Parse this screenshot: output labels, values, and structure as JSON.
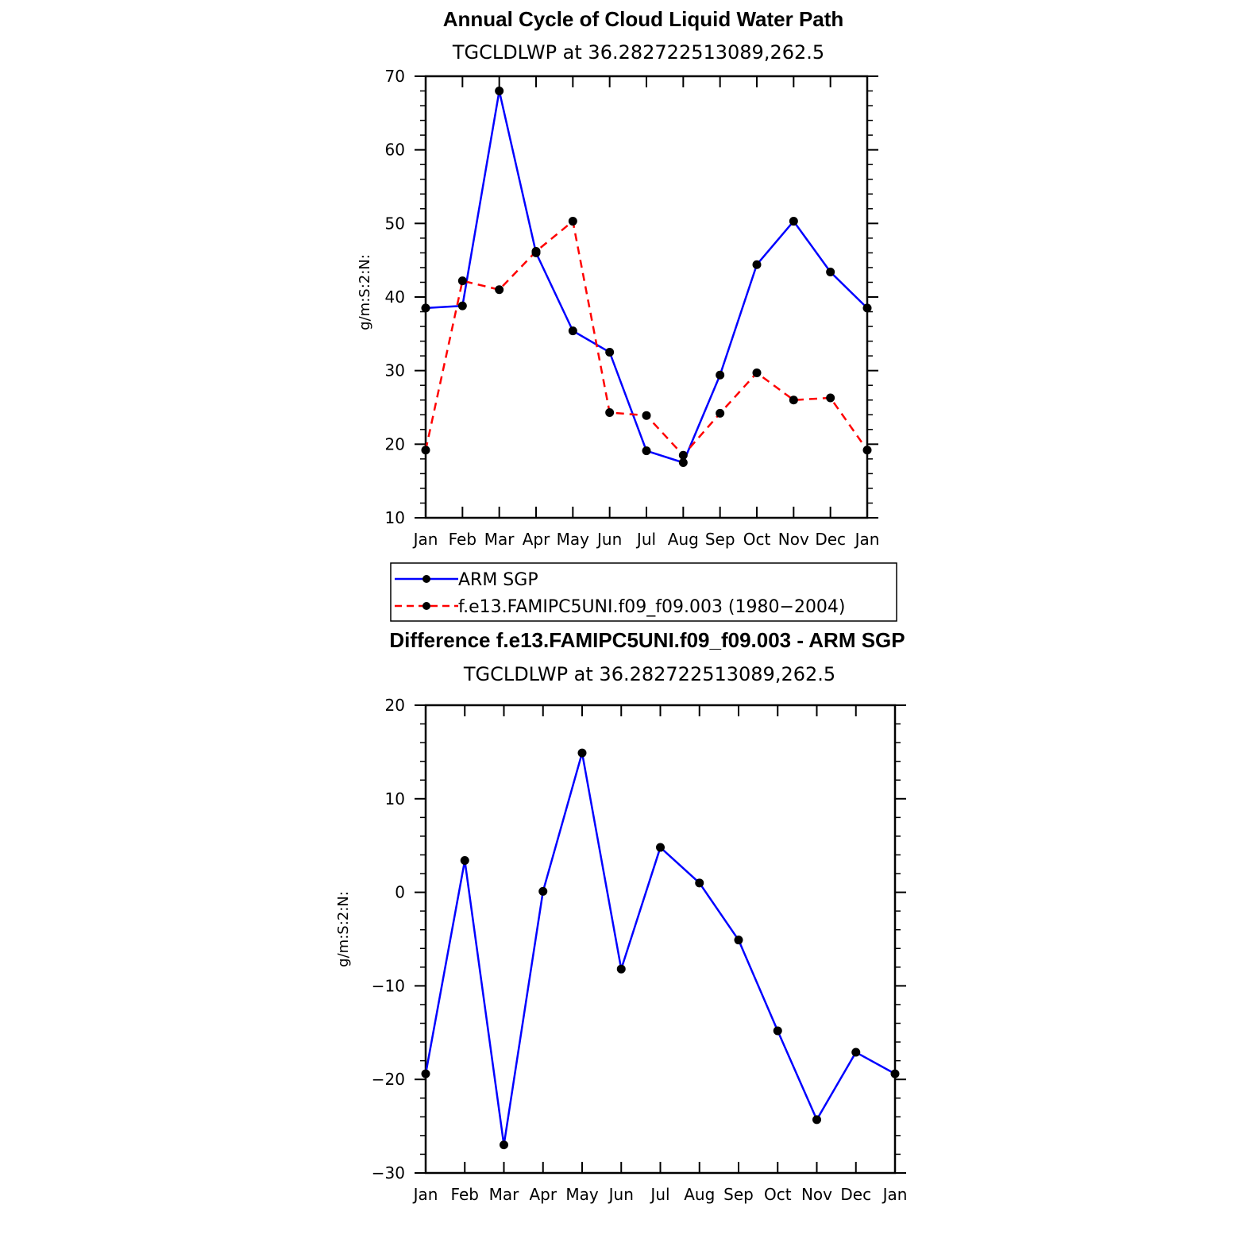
{
  "colors": {
    "arm": "#0000ff",
    "model": "#ff0000",
    "marker": "#000000"
  },
  "chart_data": [
    {
      "type": "line",
      "title": "Annual Cycle of Cloud Liquid Water Path",
      "subtitle": "TGCLDLWP  at  36.282722513089,262.5",
      "ylabel": "g/m:S:2:N:",
      "categories": [
        "Jan",
        "Feb",
        "Mar",
        "Apr",
        "May",
        "Jun",
        "Jul",
        "Aug",
        "Sep",
        "Oct",
        "Nov",
        "Dec",
        "Jan"
      ],
      "ylim": [
        10,
        70
      ],
      "yticks": [
        10,
        20,
        30,
        40,
        50,
        60,
        70
      ],
      "series": [
        {
          "name": "ARM  SGP",
          "style": "solid",
          "color": "#0000ff",
          "values": [
            38.5,
            38.8,
            68.0,
            46.0,
            35.4,
            32.5,
            19.1,
            17.5,
            29.4,
            44.4,
            50.3,
            43.4,
            38.5
          ]
        },
        {
          "name": "f.e13.FAMIPC5UNI.f09_f09.003 (1980-2004)",
          "style": "dashed",
          "color": "#ff0000",
          "values": [
            19.2,
            42.2,
            41.0,
            46.2,
            50.3,
            24.3,
            23.9,
            18.5,
            24.2,
            29.7,
            26.0,
            26.3,
            19.2
          ]
        }
      ],
      "legend": {
        "position": "below",
        "entries": [
          "ARM  SGP",
          "f.e13.FAMIPC5UNI.f09_f09.003  (1980−2004)"
        ]
      }
    },
    {
      "type": "line",
      "title": "Difference f.e13.FAMIPC5UNI.f09_f09.003 - ARM SGP",
      "subtitle": "TGCLDLWP  at  36.282722513089,262.5",
      "ylabel": "g/m:S:2:N:",
      "categories": [
        "Jan",
        "Feb",
        "Mar",
        "Apr",
        "May",
        "Jun",
        "Jul",
        "Aug",
        "Sep",
        "Oct",
        "Nov",
        "Dec",
        "Jan"
      ],
      "ylim": [
        -30,
        20
      ],
      "yticks": [
        -30,
        -20,
        -10,
        0,
        10,
        20
      ],
      "ytick_labels": [
        "−30",
        "−20",
        "−10",
        "0",
        "10",
        "20"
      ],
      "series": [
        {
          "name": "Difference",
          "style": "solid",
          "color": "#0000ff",
          "values": [
            -19.4,
            3.4,
            -27.0,
            0.1,
            14.9,
            -8.2,
            4.8,
            1.0,
            -5.1,
            -14.8,
            -24.3,
            -17.1,
            -19.4
          ]
        }
      ]
    }
  ]
}
